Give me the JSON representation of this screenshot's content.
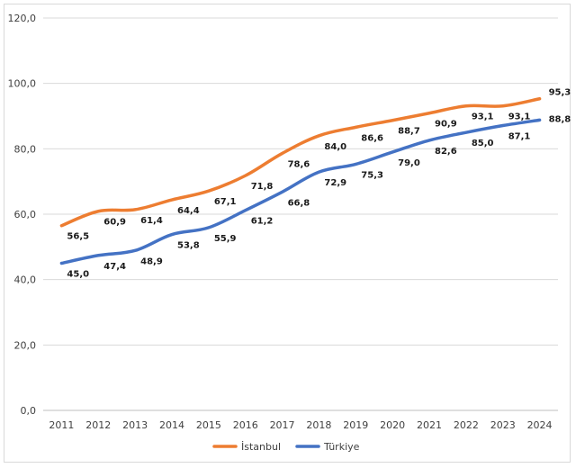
{
  "chart_data": {
    "type": "line",
    "categories": [
      "2011",
      "2012",
      "2013",
      "2014",
      "2015",
      "2016",
      "2017",
      "2018",
      "2019",
      "2020",
      "2021",
      "2022",
      "2023",
      "2024"
    ],
    "series": [
      {
        "name": "İstanbul",
        "color": "#ed7d31",
        "values": [
          56.5,
          60.9,
          61.4,
          64.4,
          67.1,
          71.8,
          78.6,
          84.0,
          86.6,
          88.7,
          90.9,
          93.1,
          93.1,
          95.3
        ],
        "labels": [
          "56,5",
          "60,9",
          "61,4",
          "64,4",
          "67,1",
          "71,8",
          "78,6",
          "84,0",
          "86,6",
          "88,7",
          "90,9",
          "93,1",
          "93,1",
          "95,3"
        ]
      },
      {
        "name": "Türkiye",
        "color": "#4472c4",
        "values": [
          45.0,
          47.4,
          48.9,
          53.8,
          55.9,
          61.2,
          66.8,
          72.9,
          75.3,
          79.0,
          82.6,
          85.0,
          87.1,
          88.8
        ],
        "labels": [
          "45,0",
          "47,4",
          "48,9",
          "53,8",
          "55,9",
          "61,2",
          "66,8",
          "72,9",
          "75,3",
          "79,0",
          "82,6",
          "85,0",
          "87,1",
          "88,8"
        ]
      }
    ],
    "yticks": [
      0,
      20,
      40,
      60,
      80,
      100,
      120
    ],
    "ytick_labels": [
      "0,0",
      "20,0",
      "40,0",
      "60,0",
      "80,0",
      "100,0",
      "120,0"
    ],
    "ylim": [
      0,
      120
    ],
    "grid": true,
    "legend": "bottom"
  }
}
